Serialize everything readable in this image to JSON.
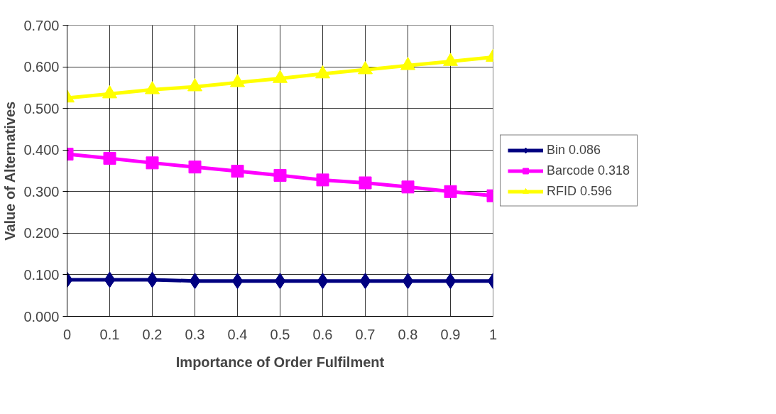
{
  "chart_data": {
    "type": "line",
    "xlabel": "Importance of Order Fulfilment",
    "ylabel": "Value of Alternatives",
    "x": [
      0,
      0.1,
      0.2,
      0.3,
      0.4,
      0.5,
      0.6,
      0.7,
      0.8,
      0.9,
      1
    ],
    "xlim": [
      0,
      1
    ],
    "xticks": [
      0,
      0.1,
      0.2,
      0.3,
      0.4,
      0.5,
      0.6,
      0.7,
      0.8,
      0.9,
      1
    ],
    "ylim": [
      0,
      0.7
    ],
    "yticks": [
      {
        "value": 0,
        "label": "0.000"
      },
      {
        "value": 0.1,
        "label": "0.100"
      },
      {
        "value": 0.2,
        "label": "0.200"
      },
      {
        "value": 0.3,
        "label": "0.300"
      },
      {
        "value": 0.4,
        "label": "0.400"
      },
      {
        "value": 0.5,
        "label": "0.500"
      },
      {
        "value": 0.6,
        "label": "0.600"
      },
      {
        "value": 0.7,
        "label": "0.700"
      }
    ],
    "grid": true,
    "legend": "right",
    "series": [
      {
        "name": "Bin 0.086",
        "color": "#000080",
        "marker": "diamond",
        "values": [
          0.088,
          0.088,
          0.088,
          0.085,
          0.085,
          0.085,
          0.085,
          0.085,
          0.085,
          0.085,
          0.085
        ]
      },
      {
        "name": "Barcode 0.318",
        "color": "#ff00ff",
        "marker": "square",
        "values": [
          0.39,
          0.38,
          0.369,
          0.359,
          0.349,
          0.339,
          0.328,
          0.321,
          0.311,
          0.3,
          0.29
        ]
      },
      {
        "name": "RFID 0.596",
        "color": "#ffff00",
        "marker": "triangle",
        "values": [
          0.525,
          0.535,
          0.545,
          0.552,
          0.562,
          0.572,
          0.583,
          0.593,
          0.603,
          0.613,
          0.623
        ]
      }
    ]
  }
}
